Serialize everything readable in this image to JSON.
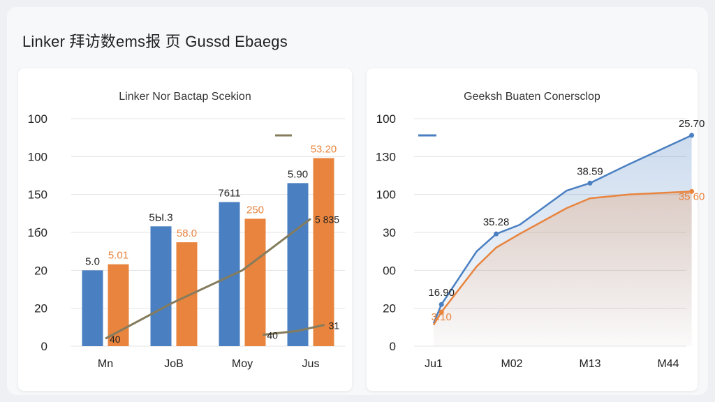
{
  "page": {
    "title": "Linker 拜访数ems报 页 Gussd Ebaegs"
  },
  "colors": {
    "blue": "#4a7fc1",
    "orange": "#e8843e",
    "olive": "#857c5d",
    "grid": "#e3e3e3"
  },
  "chart_data": [
    {
      "type": "bar",
      "title": "Linker Nor Bactap Scekion",
      "categories": [
        "Mn",
        "JoB",
        "Moy",
        "Jus"
      ],
      "y_tick_labels": [
        "0",
        "20",
        "20",
        "1б0",
        "150",
        "100",
        "100"
      ],
      "ylim": [
        0,
        300
      ],
      "grid": true,
      "series": [
        {
          "color": "#4a7fc1",
          "values": [
            100,
            158,
            190,
            215
          ],
          "labels": [
            "5.0",
            "5Ы.3",
            "7611",
            "5.90"
          ]
        },
        {
          "color": "#e8843e",
          "values": [
            108,
            137,
            168,
            248
          ],
          "labels": [
            "5.01",
            "58.0",
            "250",
            "53.20"
          ]
        }
      ],
      "line_series": [
        {
          "color": "#857c5d",
          "values": [
            10,
            58,
            100,
            168
          ],
          "labels": [
            "40",
            "",
            "",
            "5 835"
          ]
        },
        {
          "color": "#857c5d",
          "values": [
            15,
            20,
            28
          ],
          "x_positions": [
            2.3,
            2.8,
            3.2
          ],
          "labels": [
            "40",
            "",
            "31"
          ]
        }
      ],
      "legend": {
        "position": "top-right",
        "entries": [
          ""
        ]
      }
    },
    {
      "type": "area",
      "title": "Geeksh Buaten Conerscloр",
      "categories": [
        "Ju1",
        "M02",
        "M13",
        "M44"
      ],
      "y_tick_labels": [
        "0",
        "20",
        "00",
        "30",
        "100",
        "1З0",
        "100"
      ],
      "ylim": [
        0,
        300
      ],
      "grid": true,
      "series": [
        {
          "color": "#4a7fc1",
          "x": [
            0,
            0.1,
            0.55,
            0.8,
            1.1,
            1.7,
            2.0,
            2.5,
            3.3
          ],
          "values": [
            30,
            55,
            125,
            148,
            160,
            205,
            215,
            240,
            278
          ],
          "labels": [
            "",
            "16.90",
            "",
            "35.28",
            "",
            "",
            "38.59",
            "",
            "25.70"
          ]
        },
        {
          "color": "#e8843e",
          "x": [
            0,
            0.1,
            0.55,
            0.8,
            1.1,
            1.7,
            2.0,
            2.5,
            3.3
          ],
          "values": [
            28,
            45,
            105,
            130,
            148,
            182,
            195,
            200,
            204
          ],
          "labels": [
            "",
            "3.10",
            "",
            "",
            "",
            "",
            "",
            "",
            "35 60"
          ]
        }
      ],
      "legend": {
        "position": "top-left",
        "entries": [
          ""
        ]
      }
    }
  ]
}
